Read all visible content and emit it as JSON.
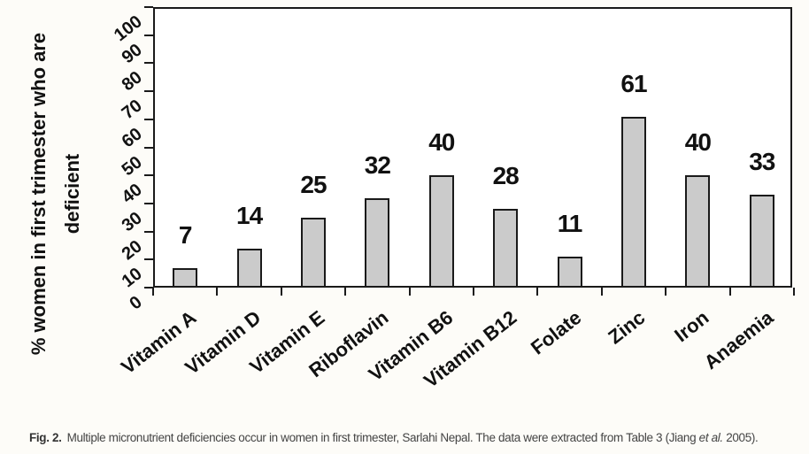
{
  "caption": {
    "label": "Fig. 2.",
    "body": "Multiple micronutrient deficiencies occur in women in first trimester, Sarlahi Nepal. The data were extracted from Table 3 (Jiang ",
    "citation_italic": "et al.",
    "tail": " 2005)."
  },
  "chart_data": {
    "type": "bar",
    "title": "",
    "categories": [
      "Vitamin A",
      "Vitamin D",
      "Vitamin E",
      "Riboflavin",
      "Vitamin B6",
      "Vitamin B12",
      "Folate",
      "Zinc",
      "Iron",
      "Anaemia"
    ],
    "values": [
      7,
      14,
      25,
      32,
      40,
      28,
      11,
      61,
      40,
      33
    ],
    "data_labels": [
      "7",
      "14",
      "25",
      "32",
      "40",
      "28",
      "11",
      "61",
      "40",
      "33"
    ],
    "xlabel": "",
    "ylabel": "% women in first trimester who are deficient",
    "ylabel_lines": [
      "% women in first trimester who are",
      "deficient"
    ],
    "ylim": [
      0,
      100
    ],
    "yticks": [
      0,
      10,
      20,
      30,
      40,
      50,
      60,
      70,
      80,
      90,
      100
    ],
    "grid": false,
    "legend": false,
    "layout_hint": "plot area framed on all four sides, category and value tick labels rotated diagonally",
    "colors": {
      "bar_fill": "#cbcbcb",
      "bar_border": "#1a1a1a",
      "axis": "#1a1a1a",
      "label": "#111111",
      "background": "#fdfcf8",
      "plot_background": "#ffffff",
      "caption_text": "#444444"
    }
  }
}
